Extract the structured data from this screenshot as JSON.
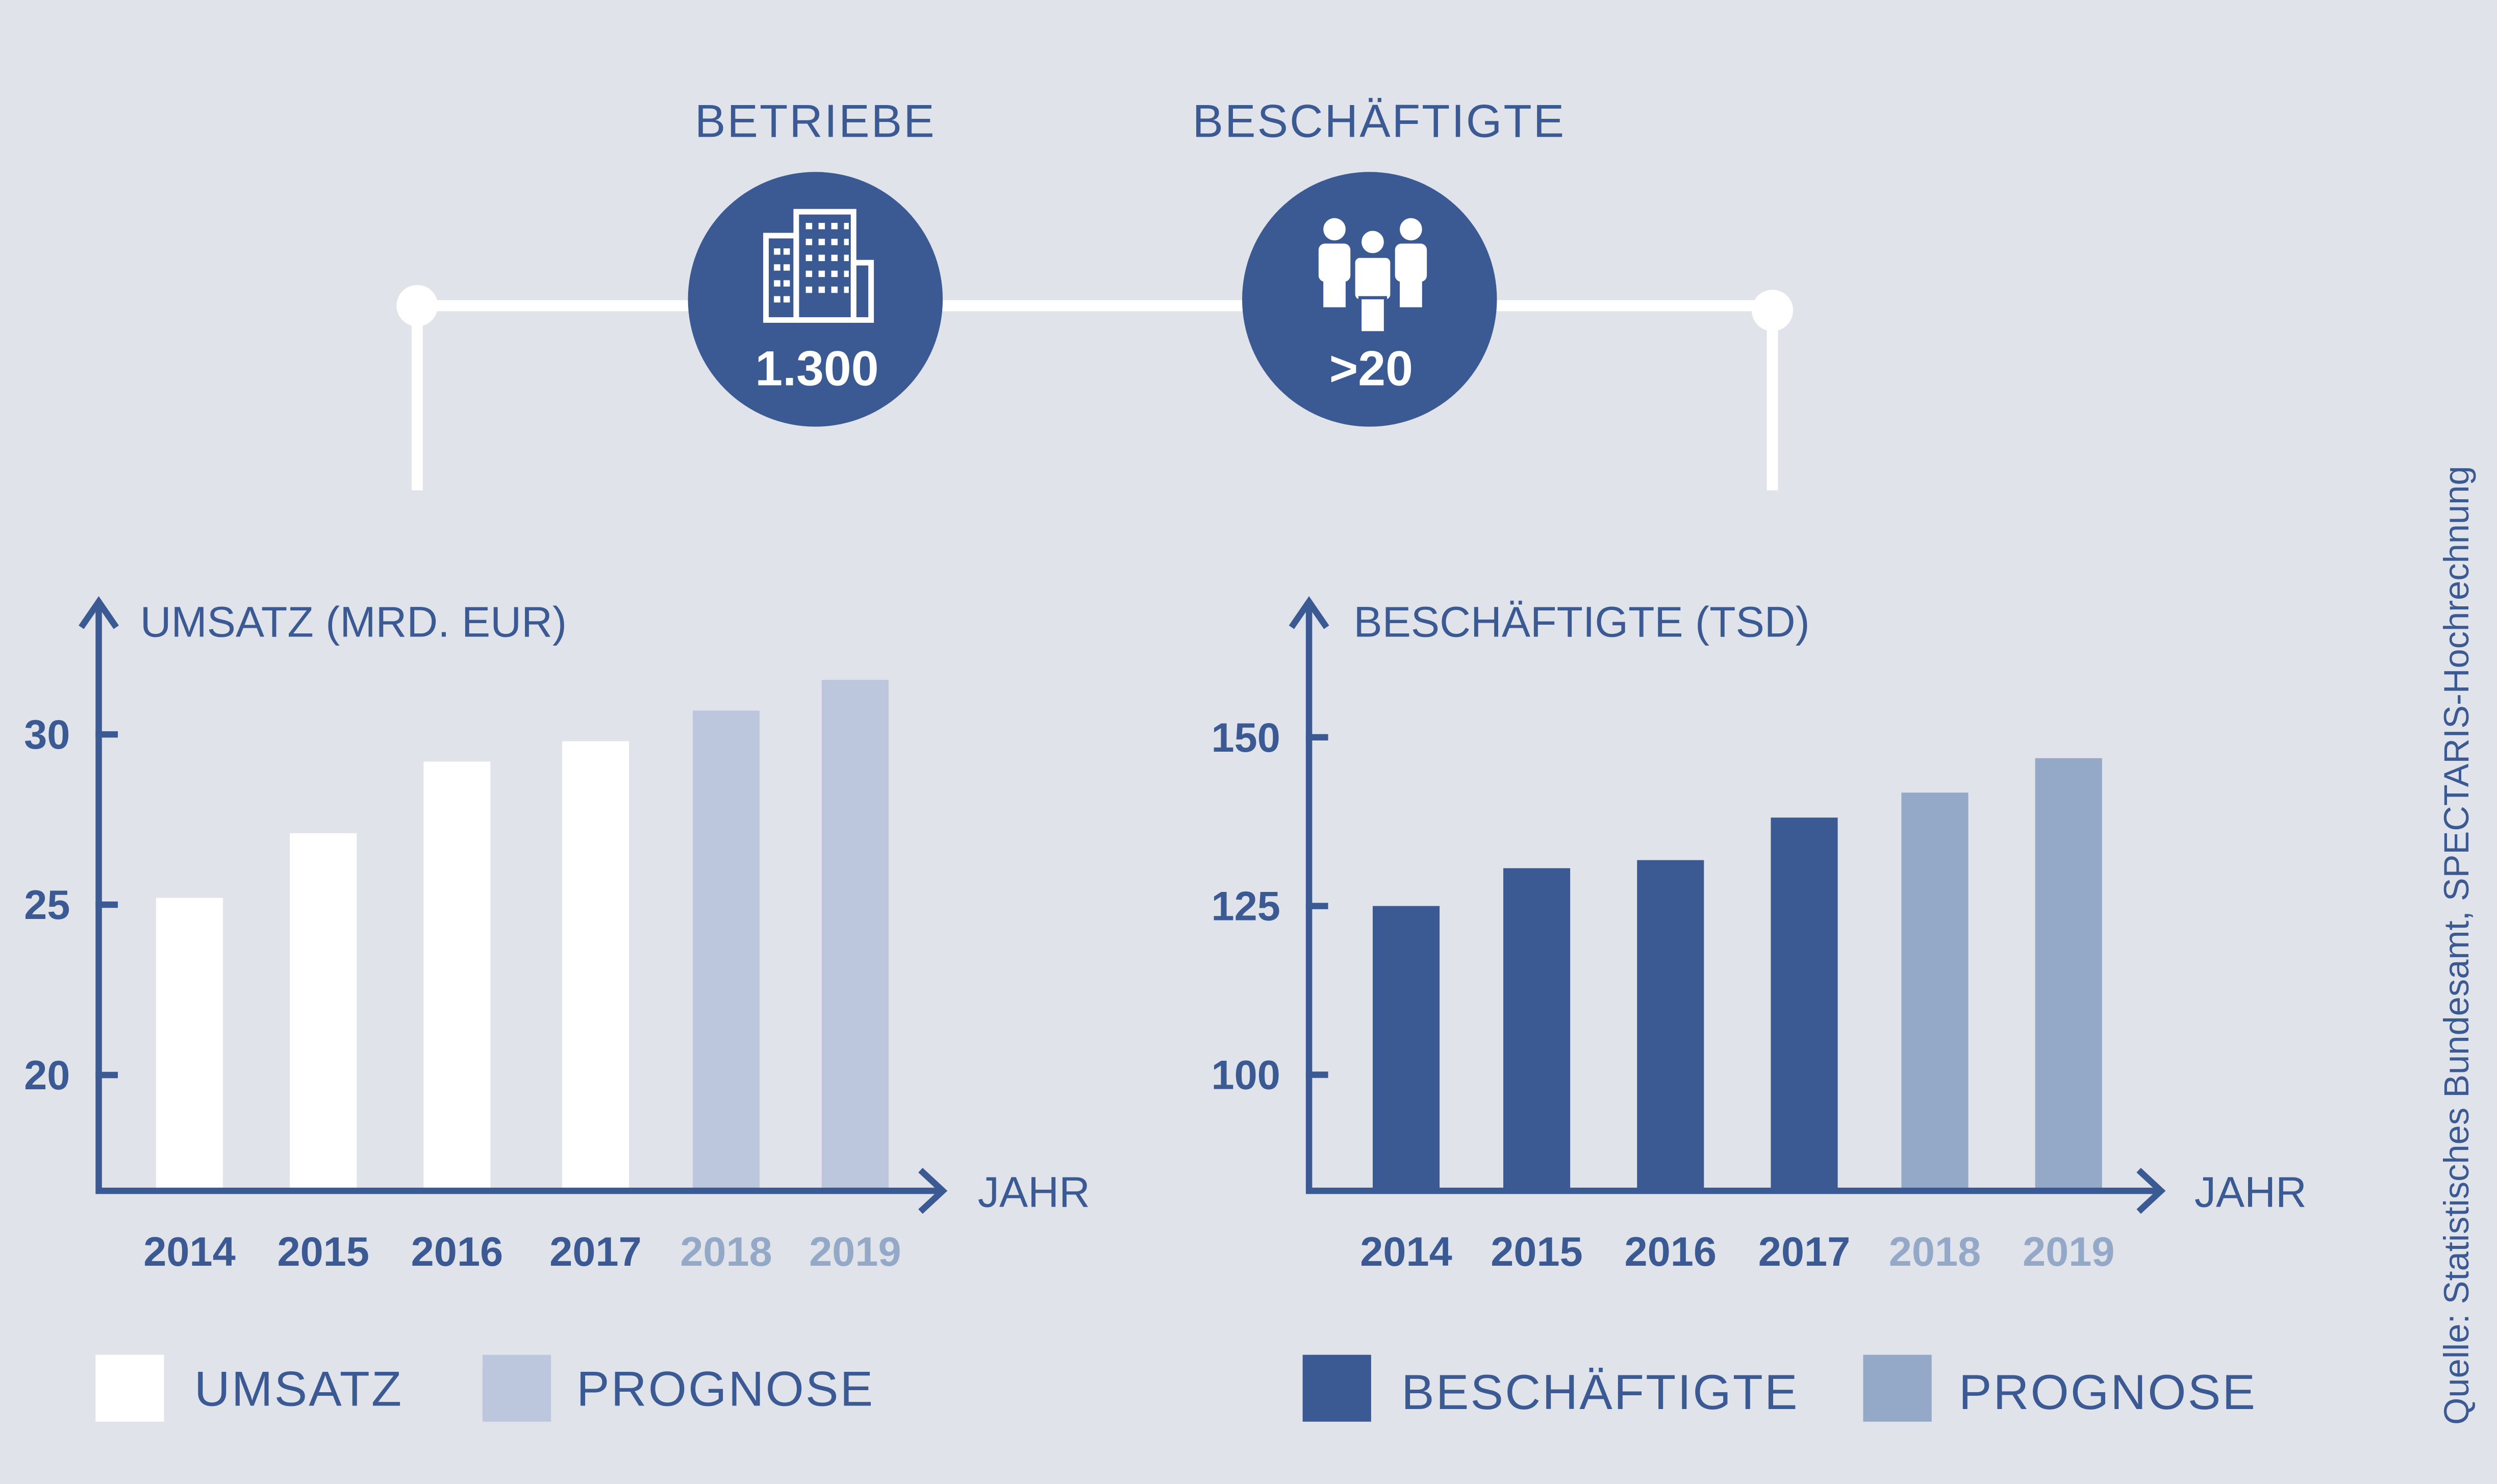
{
  "header": {
    "kpis": [
      {
        "label": "BETRIEBE",
        "value": "1.300",
        "icon": "building-icon"
      },
      {
        "label": "BESCHÄFTIGTE",
        "value": ">20",
        "icon": "people-group-icon"
      }
    ]
  },
  "colors": {
    "background": "#e1e3eb",
    "primary": "#3b5a93",
    "umsatz": "#ffffff",
    "prognose_left": "#bcc7dd",
    "prognose_right": "#94a9c7"
  },
  "chart_data": [
    {
      "type": "bar",
      "ylabel": "UMSATZ (MRD. EUR)",
      "xlabel": "JAHR",
      "categories": [
        "2014",
        "2015",
        "2016",
        "2017",
        "2018",
        "2019"
      ],
      "values": [
        25.2,
        27.1,
        29.2,
        29.8,
        30.7,
        31.6
      ],
      "forecast": [
        false,
        false,
        false,
        false,
        true,
        true
      ],
      "yticks": [
        20,
        25,
        30
      ],
      "ylim": [
        16.6,
        33.8
      ],
      "grid": false,
      "legend": [
        {
          "label": "UMSATZ",
          "color": "#ffffff"
        },
        {
          "label": "PROGNOSE",
          "color": "#bcc7dd"
        }
      ],
      "legend_position": "bottom"
    },
    {
      "type": "bar",
      "ylabel": "BESCHÄFTIGTE (TSD)",
      "xlabel": "JAHR",
      "categories": [
        "2014",
        "2015",
        "2016",
        "2017",
        "2018",
        "2019"
      ],
      "values": [
        125.0,
        130.6,
        131.8,
        138.1,
        141.8,
        146.9
      ],
      "forecast": [
        false,
        false,
        false,
        false,
        true,
        true
      ],
      "yticks": [
        100,
        125,
        150
      ],
      "ylim": [
        82.8,
        169.6
      ],
      "grid": false,
      "legend": [
        {
          "label": "BESCHÄFTIGTE",
          "color": "#3b5a93"
        },
        {
          "label": "PROGNOSE",
          "color": "#94a9c7"
        }
      ],
      "legend_position": "bottom"
    }
  ],
  "source": "Quelle: Statistisches Bundesamt, SPECTARIS-Hochrechnung"
}
